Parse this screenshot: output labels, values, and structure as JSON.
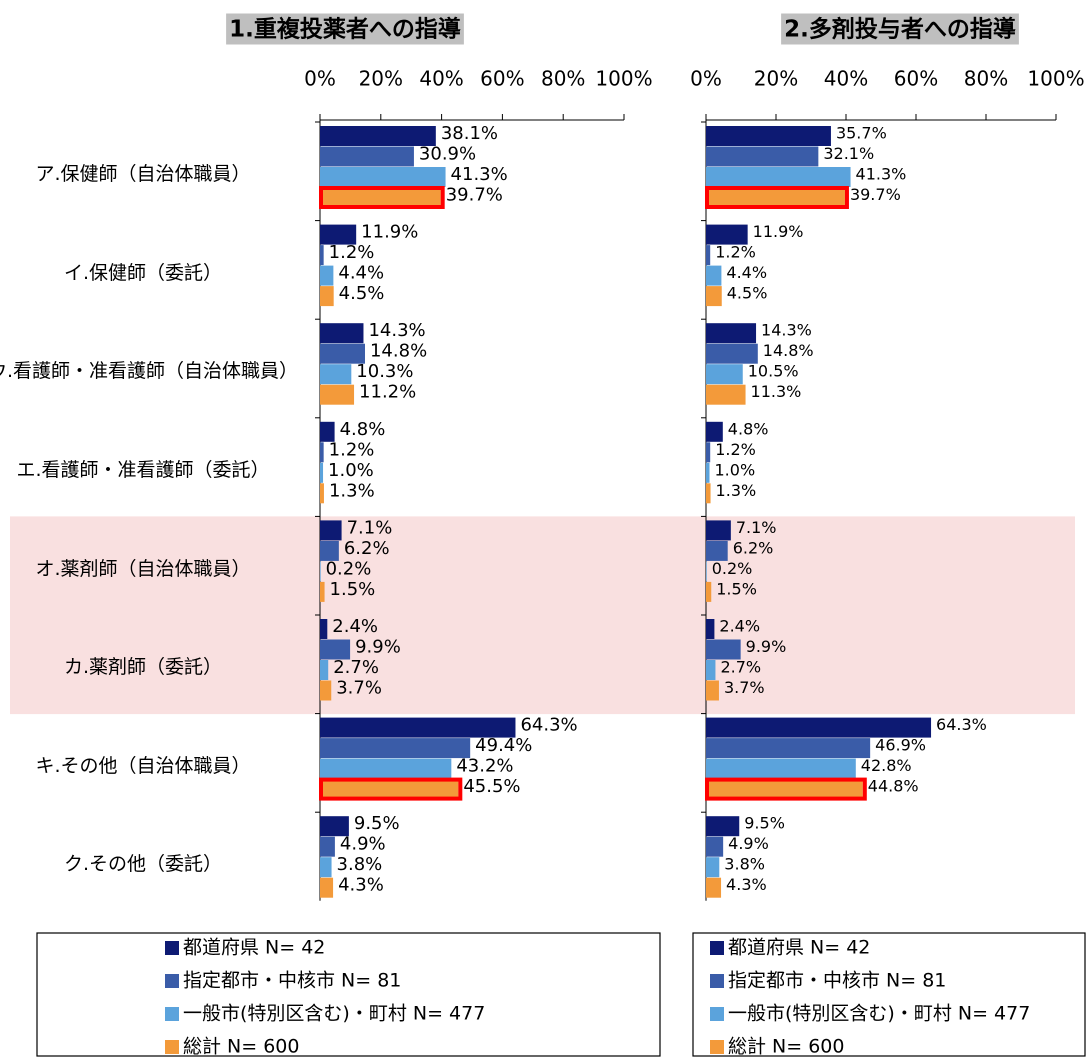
{
  "chart_data": [
    {
      "type": "bar",
      "orientation": "horizontal",
      "title": "1.重複投薬者への指導",
      "categories": [
        "ア.保健師（自治体職員）",
        "イ.保健師（委託）",
        "ウ.看護師・准看護師（自治体職員）",
        "エ.看護師・准看護師（委託）",
        "オ.薬剤師（自治体職員）",
        "カ.薬剤師（委託）",
        "キ.その他（自治体職員）",
        "ク.その他（委託）"
      ],
      "series": [
        {
          "name": "都道府県 N= 42",
          "color": "#0d1a73",
          "values": [
            38.1,
            11.9,
            14.3,
            4.8,
            7.1,
            2.4,
            64.3,
            9.5
          ],
          "value_labels": [
            "38.1%",
            "11.9%",
            "14.3%",
            "4.8%",
            "7.1%",
            "2.4%",
            "64.3%",
            "9.5%"
          ]
        },
        {
          "name": "指定都市・中核市 N= 81",
          "color": "#3a5ca8",
          "values": [
            30.9,
            1.2,
            14.8,
            1.2,
            6.2,
            9.9,
            49.4,
            4.9
          ],
          "value_labels": [
            "30.9%",
            "1.2%",
            "14.8%",
            "1.2%",
            "6.2%",
            "9.9%",
            "49.4%",
            "4.9%"
          ]
        },
        {
          "name": "一般市(特別区含む)・町村 N= 477",
          "color": "#5ba3dc",
          "values": [
            41.3,
            4.4,
            10.3,
            1.0,
            0.2,
            2.7,
            43.2,
            3.8
          ],
          "value_labels": [
            "41.3%",
            "4.4%",
            "10.3%",
            "1.0%",
            "0.2%",
            "2.7%",
            "43.2%",
            "3.8%"
          ]
        },
        {
          "name": "総計 N= 600",
          "color": "#f39a3a",
          "values": [
            39.7,
            4.5,
            11.2,
            1.3,
            1.5,
            3.7,
            45.5,
            4.3
          ],
          "value_labels": [
            "39.7%",
            "4.5%",
            "11.2%",
            "1.3%",
            "1.5%",
            "3.7%",
            "45.5%",
            "4.3%"
          ]
        }
      ],
      "xlim": [
        0,
        100
      ],
      "xticks": [
        {
          "value": 0,
          "label": "0%"
        },
        {
          "value": 20,
          "label": "20%"
        },
        {
          "value": 40,
          "label": "40%"
        },
        {
          "value": 60,
          "label": "60%"
        },
        {
          "value": 80,
          "label": "80%"
        },
        {
          "value": 100,
          "label": "100%"
        }
      ],
      "highlight_series": 3,
      "highlight_categories": [
        0,
        6
      ],
      "highlight_color": "#ff0000",
      "shaded_categories": [
        4,
        5
      ],
      "shade_color": "#f9e0e0"
    },
    {
      "type": "bar",
      "orientation": "horizontal",
      "title": "2.多剤投与者への指導",
      "series": [
        {
          "name": "都道府県 N= 42",
          "color": "#0d1a73",
          "values": [
            35.7,
            11.9,
            14.3,
            4.8,
            7.1,
            2.4,
            64.3,
            9.5
          ],
          "value_labels": [
            "35.7%",
            "11.9%",
            "14.3%",
            "4.8%",
            "7.1%",
            "2.4%",
            "64.3%",
            "9.5%"
          ]
        },
        {
          "name": "指定都市・中核市 N= 81",
          "color": "#3a5ca8",
          "values": [
            32.1,
            1.2,
            14.8,
            1.2,
            6.2,
            9.9,
            46.9,
            4.9
          ],
          "value_labels": [
            "32.1%",
            "1.2%",
            "14.8%",
            "1.2%",
            "6.2%",
            "9.9%",
            "46.9%",
            "4.9%"
          ]
        },
        {
          "name": "一般市(特別区含む)・町村 N= 477",
          "color": "#5ba3dc",
          "values": [
            41.3,
            4.4,
            10.5,
            1.0,
            0.2,
            2.7,
            42.8,
            3.8
          ],
          "value_labels": [
            "41.3%",
            "4.4%",
            "10.5%",
            "1.0%",
            "0.2%",
            "2.7%",
            "42.8%",
            "3.8%"
          ]
        },
        {
          "name": "総計 N= 600",
          "color": "#f39a3a",
          "values": [
            39.7,
            4.5,
            11.3,
            1.3,
            1.5,
            3.7,
            44.8,
            4.3
          ],
          "value_labels": [
            "39.7%",
            "4.5%",
            "11.3%",
            "1.3%",
            "1.5%",
            "3.7%",
            "44.8%",
            "4.3%"
          ]
        }
      ],
      "xlim": [
        0,
        100
      ],
      "xticks": [
        {
          "value": 0,
          "label": "0%"
        },
        {
          "value": 20,
          "label": "20%"
        },
        {
          "value": 40,
          "label": "40%"
        },
        {
          "value": 60,
          "label": "60%"
        },
        {
          "value": 80,
          "label": "80%"
        },
        {
          "value": 100,
          "label": "100%"
        }
      ],
      "highlight_series": 3,
      "highlight_categories": [
        0,
        6
      ],
      "highlight_color": "#ff0000",
      "shaded_categories": [
        4,
        5
      ],
      "shade_color": "#f9e0e0"
    }
  ]
}
